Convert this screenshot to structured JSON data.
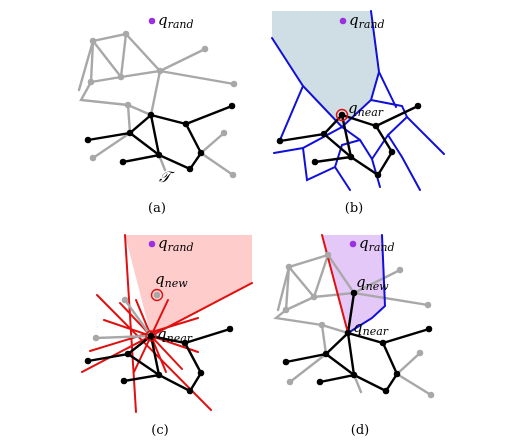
{
  "panels": [
    {
      "id": "a",
      "caption": "(a)",
      "labels": {
        "q_rand": "q",
        "q_rand_sub": "rand",
        "tree": "𝒯"
      }
    },
    {
      "id": "b",
      "caption": "(b)",
      "labels": {
        "q_rand": "q",
        "q_rand_sub": "rand",
        "q_near": "q",
        "q_near_sub": "near"
      }
    },
    {
      "id": "c",
      "caption": "(c)",
      "labels": {
        "q_rand": "q",
        "q_rand_sub": "rand",
        "q_new": "q",
        "q_new_sub": "new",
        "q_near": "q",
        "q_near_sub": "near"
      }
    },
    {
      "id": "d",
      "caption": "(d)",
      "labels": {
        "q_rand": "q",
        "q_rand_sub": "rand",
        "q_new": "q",
        "q_new_sub": "new",
        "q_near": "q",
        "q_near_sub": "near"
      }
    }
  ],
  "colors": {
    "background": "#ffffff",
    "tree_edge_gray": "#a8a8a8",
    "tree_edge_black": "#000000",
    "voronoi_edge_blue": "#1010d8",
    "voronoi_region_fill": "#cfdde4",
    "red_line": "#e01010",
    "red_region_fill": "#ffcccc",
    "purple_region_fill": "#e4c8f8",
    "q_rand_point": "#9b30e0",
    "q_near_ring": "#e01010"
  }
}
